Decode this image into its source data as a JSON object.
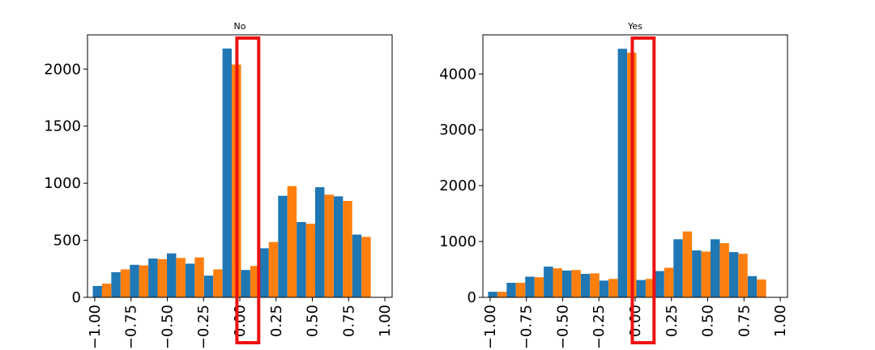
{
  "chart_data": [
    {
      "type": "bar",
      "title": "No",
      "xlabel": "",
      "ylabel": "",
      "xlim": [
        -1.05,
        1.05
      ],
      "ylim": [
        0,
        2300
      ],
      "xticks": [
        "−1.00",
        "−0.75",
        "−0.50",
        "−0.25",
        "0.00",
        "0.25",
        "0.50",
        "0.75",
        "1.00"
      ],
      "xtick_values": [
        -1.0,
        -0.75,
        -0.5,
        -0.25,
        0.0,
        0.25,
        0.5,
        0.75,
        1.0
      ],
      "yticks": [
        "0",
        "500",
        "1000",
        "1500",
        "2000"
      ],
      "ytick_values": [
        0,
        500,
        1000,
        1500,
        2000
      ],
      "bin_centers": [
        -0.95,
        -0.8222,
        -0.6944,
        -0.5667,
        -0.4389,
        -0.3111,
        -0.1833,
        -0.0556,
        0.0722,
        0.2,
        0.3278,
        0.4556,
        0.5833,
        0.7111,
        0.8389
      ],
      "series": [
        {
          "color": "#1f77b4",
          "values": [
            100,
            220,
            285,
            340,
            385,
            295,
            190,
            2180,
            240,
            430,
            890,
            660,
            965,
            885,
            550
          ]
        },
        {
          "color": "#ff7f0e",
          "values": [
            120,
            245,
            280,
            335,
            345,
            350,
            245,
            2040,
            275,
            485,
            975,
            645,
            900,
            845,
            530
          ]
        }
      ],
      "highlight": {
        "x_range": [
          -0.02,
          0.13
        ],
        "color": "#ee1111"
      }
    },
    {
      "type": "bar",
      "title": "Yes",
      "xlabel": "",
      "ylabel": "",
      "xlim": [
        -1.05,
        1.05
      ],
      "ylim": [
        0,
        4700
      ],
      "xticks": [
        "−1.00",
        "−0.75",
        "−0.50",
        "−0.25",
        "0.00",
        "0.25",
        "0.50",
        "0.75",
        "1.00"
      ],
      "xtick_values": [
        -1.0,
        -0.75,
        -0.5,
        -0.25,
        0.0,
        0.25,
        0.5,
        0.75,
        1.0
      ],
      "yticks": [
        "0",
        "1000",
        "2000",
        "3000",
        "4000"
      ],
      "ytick_values": [
        0,
        1000,
        2000,
        3000,
        4000
      ],
      "bin_centers": [
        -0.95,
        -0.8222,
        -0.6944,
        -0.5667,
        -0.4389,
        -0.3111,
        -0.1833,
        -0.0556,
        0.0722,
        0.2,
        0.3278,
        0.4556,
        0.5833,
        0.7111,
        0.8389
      ],
      "series": [
        {
          "color": "#1f77b4",
          "values": [
            100,
            260,
            370,
            550,
            480,
            420,
            300,
            4450,
            310,
            470,
            1040,
            840,
            1040,
            810,
            380
          ]
        },
        {
          "color": "#ff7f0e",
          "values": [
            100,
            260,
            360,
            520,
            490,
            430,
            330,
            4380,
            330,
            530,
            1180,
            820,
            970,
            780,
            320
          ]
        }
      ],
      "highlight": {
        "x_range": [
          -0.02,
          0.13
        ],
        "color": "#ee1111"
      }
    }
  ]
}
